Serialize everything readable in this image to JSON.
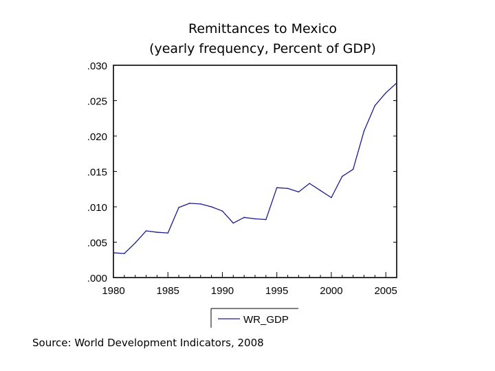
{
  "chart_data": {
    "type": "line",
    "title": "Remittances  to Mexico",
    "subtitle": "(yearly frequency,  Percent of GDP)",
    "xlabel": "",
    "ylabel": "",
    "x": [
      1980,
      1981,
      1982,
      1983,
      1984,
      1985,
      1986,
      1987,
      1988,
      1989,
      1990,
      1991,
      1992,
      1993,
      1994,
      1995,
      1996,
      1997,
      1998,
      1999,
      2000,
      2001,
      2002,
      2003,
      2004,
      2005,
      2006
    ],
    "series": [
      {
        "name": "WR_GDP",
        "color": "#1a1a8c",
        "values": [
          0.0035,
          0.0034,
          0.0049,
          0.0066,
          0.0064,
          0.0063,
          0.0099,
          0.0105,
          0.0104,
          0.01,
          0.0094,
          0.0077,
          0.0085,
          0.0083,
          0.0082,
          0.0127,
          0.0126,
          0.0121,
          0.0133,
          0.0123,
          0.0113,
          0.0143,
          0.0153,
          0.0207,
          0.0243,
          0.0261,
          0.0275
        ]
      }
    ],
    "xlim": [
      1980,
      2006
    ],
    "ylim": [
      0,
      0.03
    ],
    "x_ticks": [
      1980,
      1985,
      1990,
      1995,
      2000,
      2005
    ],
    "x_tick_labels": [
      "1980",
      "1985",
      "1990",
      "1995",
      "2000",
      "2005"
    ],
    "y_ticks": [
      0,
      0.005,
      0.01,
      0.015,
      0.02,
      0.025,
      0.03
    ],
    "y_tick_labels": [
      ".000",
      ".005",
      ".010",
      ".015",
      ".020",
      ".025",
      ".030"
    ],
    "grid": false,
    "legend_position": "bottom-center"
  },
  "source": "Source:  World Development Indicators, 2008"
}
